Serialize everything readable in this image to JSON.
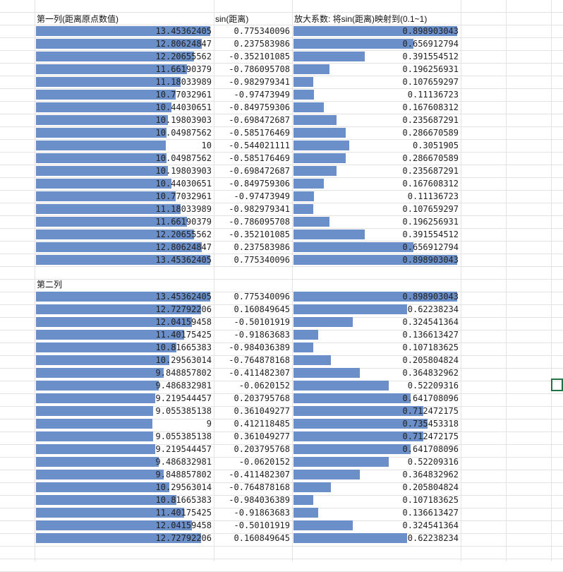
{
  "headers": {
    "col1": "第一列(距离原点数值)",
    "col2": "sin(距离)",
    "col3": "放大系数: 将sin(距离)映射到(0.1~1)",
    "section2": "第二列"
  },
  "colors": {
    "bar": "#6b8fc8",
    "selection": "#217346"
  },
  "section1": {
    "col1": [
      "13.45362405",
      "12.80624847",
      "12.20655562",
      "11.66190379",
      "11.18033989",
      "10.77032961",
      "10.44030651",
      "10.19803903",
      "10.04987562",
      "10",
      "10.04987562",
      "10.19803903",
      "10.44030651",
      "10.77032961",
      "11.18033989",
      "11.66190379",
      "12.20655562",
      "12.80624847",
      "13.45362405"
    ],
    "col2": [
      "0.775340096",
      "0.237583986",
      "-0.352101085",
      "-0.786095708",
      "-0.982979341",
      "-0.97473949",
      "-0.849759306",
      "-0.698472687",
      "-0.585176469",
      "-0.544021111",
      "-0.585176469",
      "-0.698472687",
      "-0.849759306",
      "-0.97473949",
      "-0.982979341",
      "-0.786095708",
      "-0.352101085",
      "0.237583986",
      "0.775340096"
    ],
    "col3": [
      "0.898903043",
      "0.656912794",
      "0.391554512",
      "0.196256931",
      "0.107659297",
      "0.11136723",
      "0.167608312",
      "0.235687291",
      "0.286670589",
      "0.3051905",
      "0.286670589",
      "0.235687291",
      "0.167608312",
      "0.11136723",
      "0.107659297",
      "0.196256931",
      "0.391554512",
      "0.656912794",
      "0.898903043"
    ]
  },
  "section2": {
    "col1": [
      "13.45362405",
      "12.72792206",
      "12.04159458",
      "11.40175425",
      "10.81665383",
      "10.29563014",
      "9.848857802",
      "9.486832981",
      "9.219544457",
      "9.055385138",
      "9",
      "9.055385138",
      "9.219544457",
      "9.486832981",
      "9.848857802",
      "10.29563014",
      "10.81665383",
      "11.40175425",
      "12.04159458",
      "12.72792206"
    ],
    "col2": [
      "0.775340096",
      "0.160849645",
      "-0.50101919",
      "-0.91863683",
      "-0.984036389",
      "-0.764878168",
      "-0.411482307",
      "-0.0620152",
      "0.203795768",
      "0.361049277",
      "0.412118485",
      "0.361049277",
      "0.203795768",
      "-0.0620152",
      "-0.411482307",
      "-0.764878168",
      "-0.984036389",
      "-0.91863683",
      "-0.50101919",
      "0.160849645"
    ],
    "col3": [
      "0.898903043",
      "0.62238234",
      "0.324541364",
      "0.136613427",
      "0.107183625",
      "0.205804824",
      "0.364832962",
      "0.52209316",
      "0.641708096",
      "0.712472175",
      "0.735453318",
      "0.712472175",
      "0.641708096",
      "0.52209316",
      "0.364832962",
      "0.205804824",
      "0.107183625",
      "0.136613427",
      "0.324541364",
      "0.62238234"
    ]
  }
}
